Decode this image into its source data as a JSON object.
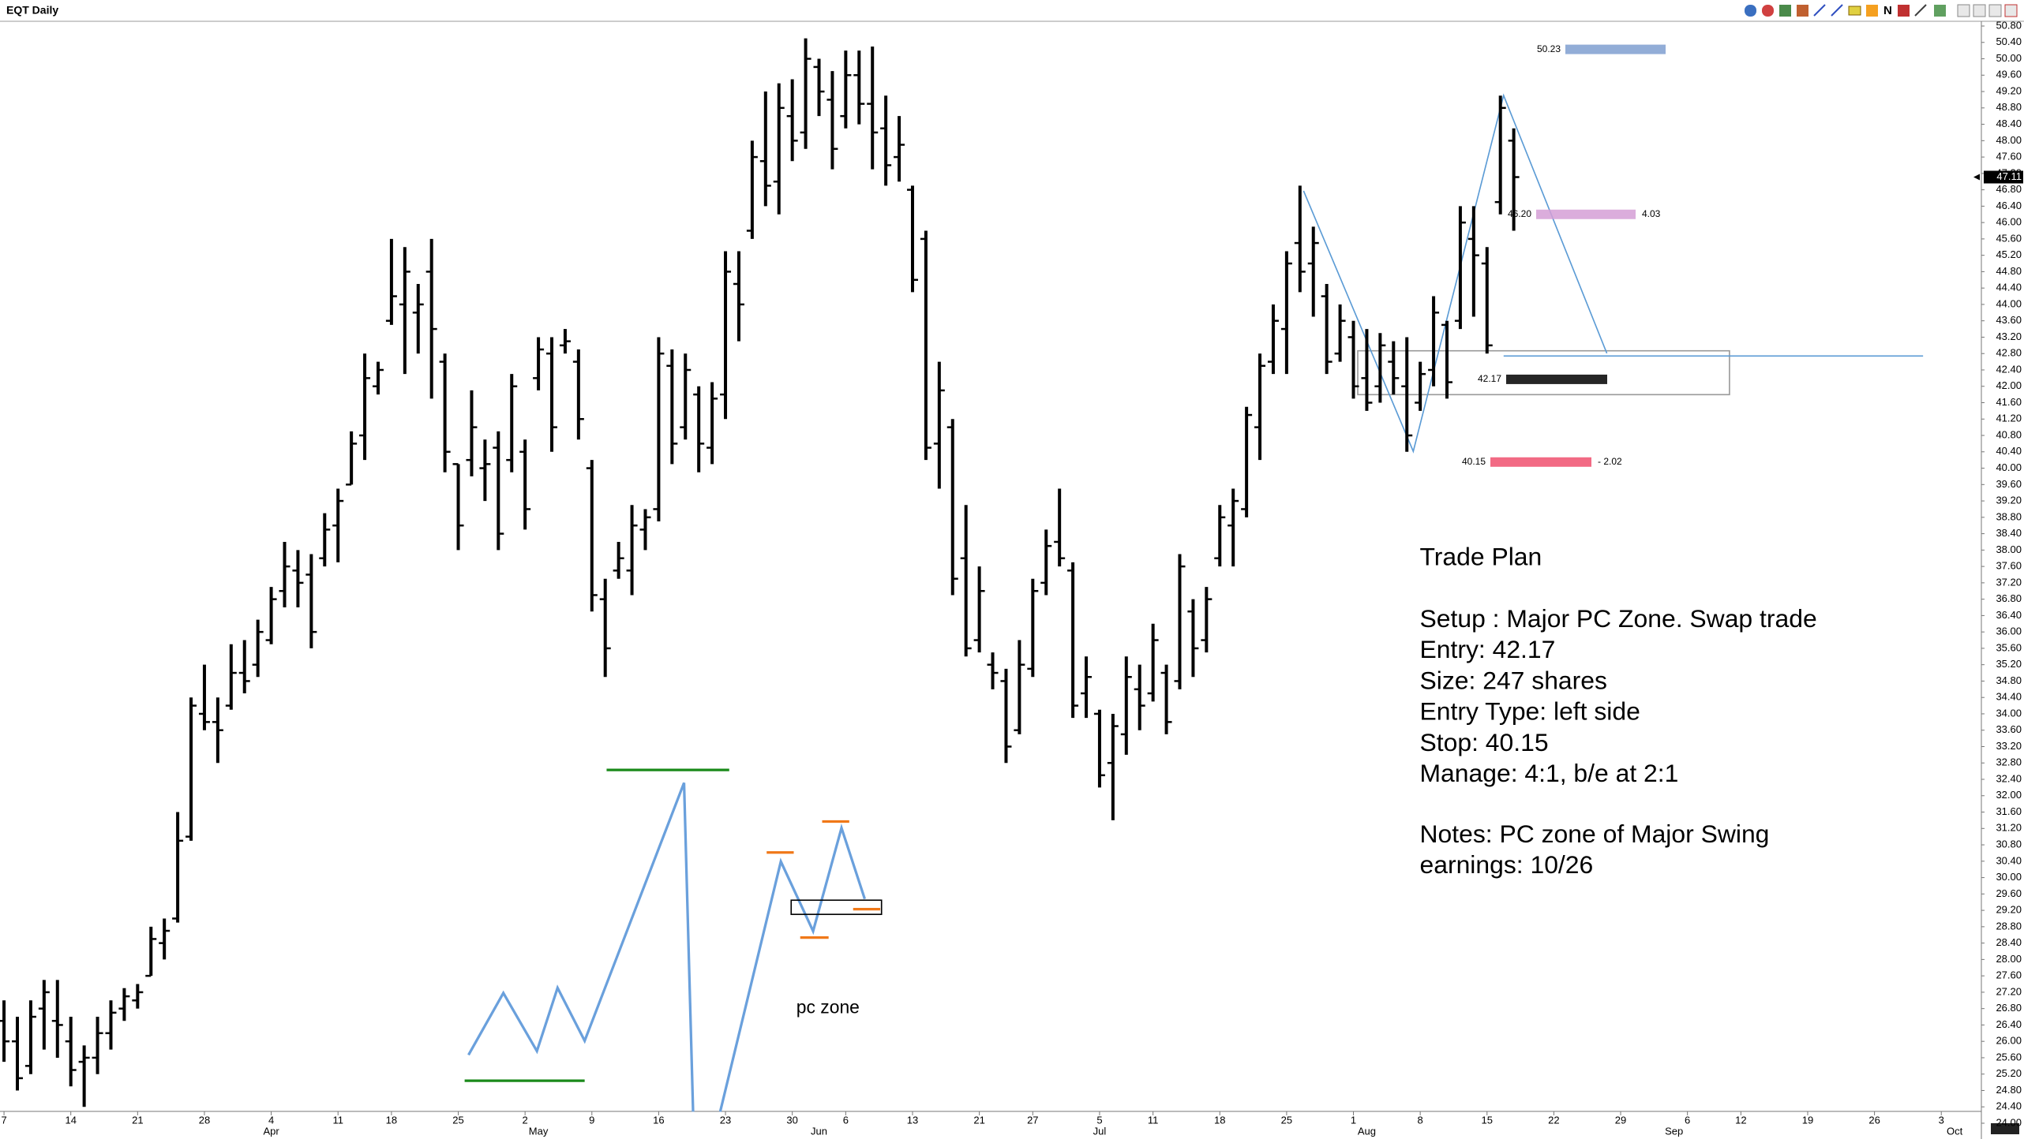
{
  "chart_data": {
    "type": "ohlc",
    "title": "EQT Daily",
    "color": "#000000",
    "open": [
      26.5,
      26.0,
      25.4,
      26.8,
      26.5,
      26.0,
      25.5,
      25.6,
      26.2,
      26.8,
      27.0,
      27.6,
      28.4,
      29.0,
      31.0,
      34.0,
      33.8,
      34.2,
      35.0,
      35.2,
      35.8,
      37.0,
      37.5,
      37.4,
      37.8,
      38.6,
      39.6,
      40.8,
      42.0,
      43.6,
      44.0,
      43.8,
      44.8,
      42.6,
      40.1,
      40.2,
      40.0,
      40.5,
      40.2,
      40.4,
      42.2,
      42.8,
      43.0,
      42.6,
      40.0,
      36.8,
      37.5,
      37.5,
      38.5,
      39.0,
      42.5,
      41.0,
      41.8,
      40.5,
      41.8,
      44.5,
      45.8,
      47.5,
      47.0,
      48.6,
      48.2,
      49.8,
      49.0,
      48.6,
      49.6,
      48.9,
      48.3,
      47.6,
      46.8,
      45.6,
      40.6,
      41.0,
      37.8,
      35.8,
      35.2,
      34.8,
      33.6,
      35.1,
      37.2,
      38.2,
      37.5,
      34.5,
      34.0,
      32.8,
      33.5,
      34.6,
      34.5,
      35.0,
      34.8,
      36.5,
      35.8,
      37.8,
      38.6,
      39.0,
      41.0,
      42.6,
      43.4,
      45.5,
      45.0,
      44.2,
      42.8,
      43.2,
      42.2,
      42.0,
      42.6,
      42.0,
      41.6,
      42.4,
      43.5,
      43.6,
      45.6,
      45.0,
      46.5,
      48.0
    ],
    "high": [
      27.0,
      26.6,
      27.0,
      27.5,
      27.5,
      26.6,
      25.9,
      26.6,
      27.0,
      27.3,
      27.4,
      28.8,
      29.0,
      31.6,
      34.4,
      35.2,
      34.4,
      35.7,
      35.8,
      36.3,
      37.1,
      38.2,
      38.0,
      37.9,
      38.9,
      39.5,
      40.9,
      42.8,
      42.6,
      45.6,
      45.4,
      44.5,
      45.6,
      42.8,
      40.1,
      41.9,
      40.7,
      40.9,
      42.3,
      40.7,
      43.2,
      43.2,
      43.4,
      42.9,
      40.2,
      37.3,
      38.2,
      39.1,
      39.0,
      43.2,
      42.9,
      42.8,
      42.0,
      42.1,
      45.3,
      45.3,
      48.0,
      49.2,
      49.4,
      49.5,
      50.5,
      50.0,
      49.7,
      50.2,
      50.2,
      50.3,
      49.1,
      48.6,
      46.9,
      45.8,
      42.6,
      41.2,
      39.1,
      37.6,
      35.5,
      35.1,
      35.8,
      37.3,
      38.5,
      39.5,
      37.7,
      35.4,
      34.1,
      34.0,
      35.4,
      35.2,
      36.2,
      35.2,
      37.9,
      36.8,
      37.1,
      39.1,
      39.5,
      41.5,
      42.8,
      44.0,
      45.3,
      46.9,
      45.9,
      44.5,
      44.0,
      43.6,
      43.4,
      43.3,
      43.1,
      43.2,
      42.6,
      44.2,
      43.6,
      46.4,
      46.4,
      45.4,
      49.1,
      48.3
    ],
    "low": [
      25.5,
      24.8,
      25.2,
      25.8,
      25.6,
      24.9,
      24.4,
      25.2,
      25.8,
      26.5,
      26.8,
      27.6,
      28.0,
      28.9,
      30.9,
      33.6,
      32.8,
      34.1,
      34.5,
      34.9,
      35.7,
      36.6,
      36.6,
      35.6,
      37.6,
      37.7,
      39.6,
      40.2,
      41.8,
      43.5,
      42.3,
      42.8,
      41.7,
      39.9,
      38.0,
      39.8,
      39.2,
      38.0,
      39.9,
      38.5,
      41.9,
      40.4,
      42.8,
      40.7,
      36.5,
      34.9,
      37.3,
      36.9,
      38.0,
      38.7,
      40.1,
      40.7,
      39.9,
      40.1,
      41.2,
      43.1,
      45.6,
      46.4,
      46.2,
      47.5,
      47.8,
      48.6,
      47.3,
      48.3,
      48.4,
      47.3,
      46.9,
      47.0,
      44.3,
      40.2,
      39.5,
      36.9,
      35.4,
      35.5,
      34.6,
      32.8,
      33.5,
      34.9,
      36.9,
      37.6,
      33.9,
      33.9,
      32.2,
      31.4,
      33.0,
      33.6,
      34.3,
      33.5,
      34.6,
      34.9,
      35.5,
      37.6,
      37.6,
      38.8,
      40.2,
      42.3,
      42.3,
      44.3,
      43.7,
      42.3,
      42.6,
      41.7,
      41.4,
      41.6,
      41.8,
      40.4,
      41.4,
      42.0,
      41.7,
      43.4,
      43.7,
      42.8,
      46.2,
      45.8
    ],
    "close": [
      26.0,
      25.1,
      26.6,
      27.2,
      26.4,
      25.3,
      25.6,
      26.2,
      26.7,
      27.1,
      27.2,
      28.5,
      28.7,
      30.9,
      34.2,
      33.8,
      33.6,
      35.0,
      34.8,
      36.0,
      36.8,
      37.6,
      37.2,
      36.0,
      38.5,
      39.2,
      40.6,
      42.2,
      42.4,
      44.2,
      44.8,
      44.0,
      43.4,
      40.4,
      38.6,
      41.0,
      40.1,
      38.4,
      42.0,
      39.0,
      42.9,
      41.0,
      43.1,
      41.2,
      36.9,
      35.6,
      37.8,
      38.6,
      38.8,
      42.8,
      40.6,
      42.4,
      40.6,
      41.7,
      44.8,
      44.0,
      47.6,
      46.9,
      48.8,
      48.0,
      50.0,
      49.2,
      47.8,
      49.6,
      48.9,
      48.2,
      47.4,
      47.9,
      44.6,
      40.5,
      41.9,
      37.3,
      35.6,
      37.0,
      35.0,
      33.2,
      35.2,
      37.0,
      38.1,
      37.8,
      34.2,
      34.9,
      32.5,
      33.7,
      34.9,
      34.2,
      35.8,
      33.8,
      37.6,
      35.6,
      36.8,
      38.8,
      39.2,
      41.3,
      42.5,
      43.6,
      45.0,
      44.8,
      45.5,
      42.6,
      43.6,
      42.0,
      41.6,
      43.0,
      42.2,
      40.8,
      42.3,
      43.8,
      42.1,
      46.0,
      45.2,
      43.0,
      48.8,
      47.11
    ],
    "xlim": [
      -0.3,
      148
    ],
    "ylim": [
      24.0,
      50.8
    ],
    "xticks": [
      {
        "value": 0,
        "label": "7"
      },
      {
        "value": 5,
        "label": "14"
      },
      {
        "value": 10,
        "label": "21"
      },
      {
        "value": 15,
        "label": "28"
      },
      {
        "value": 20,
        "label": "4"
      },
      {
        "value": 25,
        "label": "11"
      },
      {
        "value": 29,
        "label": "18"
      },
      {
        "value": 34,
        "label": "25"
      },
      {
        "value": 39,
        "label": "2"
      },
      {
        "value": 44,
        "label": "9"
      },
      {
        "value": 49,
        "label": "16"
      },
      {
        "value": 54,
        "label": "23"
      },
      {
        "value": 59,
        "label": "30"
      },
      {
        "value": 63,
        "label": "6"
      },
      {
        "value": 68,
        "label": "13"
      },
      {
        "value": 73,
        "label": "21"
      },
      {
        "value": 77,
        "label": "27"
      },
      {
        "value": 82,
        "label": "5"
      },
      {
        "value": 86,
        "label": "11"
      },
      {
        "value": 91,
        "label": "18"
      },
      {
        "value": 96,
        "label": "25"
      },
      {
        "value": 101,
        "label": "1"
      },
      {
        "value": 106,
        "label": "8"
      },
      {
        "value": 111,
        "label": "15"
      },
      {
        "value": 116,
        "label": "22"
      },
      {
        "value": 121,
        "label": "29"
      },
      {
        "value": 126,
        "label": "6"
      },
      {
        "value": 130,
        "label": "12"
      },
      {
        "value": 135,
        "label": "19"
      },
      {
        "value": 140,
        "label": "26"
      },
      {
        "value": 145,
        "label": "3"
      }
    ],
    "month_ticks": [
      {
        "value": 20,
        "label": "Apr"
      },
      {
        "value": 40,
        "label": "May"
      },
      {
        "value": 61,
        "label": "Jun"
      },
      {
        "value": 82,
        "label": "Jul"
      },
      {
        "value": 102,
        "label": "Aug"
      },
      {
        "value": 125,
        "label": "Sep"
      },
      {
        "value": 146,
        "label": "Oct"
      }
    ],
    "yticks": [
      {
        "value": 24.0,
        "label": "24.00"
      },
      {
        "value": 24.4,
        "label": "24.40"
      },
      {
        "value": 24.8,
        "label": "24.80"
      },
      {
        "value": 25.2,
        "label": "25.20"
      },
      {
        "value": 25.6,
        "label": "25.60"
      },
      {
        "value": 26.0,
        "label": "26.00"
      },
      {
        "value": 26.4,
        "label": "26.40"
      },
      {
        "value": 26.8,
        "label": "26.80"
      },
      {
        "value": 27.2,
        "label": "27.20"
      },
      {
        "value": 27.6,
        "label": "27.60"
      },
      {
        "value": 28.0,
        "label": "28.00"
      },
      {
        "value": 28.4,
        "label": "28.40"
      },
      {
        "value": 28.8,
        "label": "28.80"
      },
      {
        "value": 29.2,
        "label": "29.20"
      },
      {
        "value": 29.6,
        "label": "29.60"
      },
      {
        "value": 30.0,
        "label": "30.00"
      },
      {
        "value": 30.4,
        "label": "30.40"
      },
      {
        "value": 30.8,
        "label": "30.80"
      },
      {
        "value": 31.2,
        "label": "31.20"
      },
      {
        "value": 31.6,
        "label": "31.60"
      },
      {
        "value": 32.0,
        "label": "32.00"
      },
      {
        "value": 32.4,
        "label": "32.40"
      },
      {
        "value": 32.8,
        "label": "32.80"
      },
      {
        "value": 33.2,
        "label": "33.20"
      },
      {
        "value": 33.6,
        "label": "33.60"
      },
      {
        "value": 34.0,
        "label": "34.00"
      },
      {
        "value": 34.4,
        "label": "34.40"
      },
      {
        "value": 34.8,
        "label": "34.80"
      },
      {
        "value": 35.2,
        "label": "35.20"
      },
      {
        "value": 35.6,
        "label": "35.60"
      },
      {
        "value": 36.0,
        "label": "36.00"
      },
      {
        "value": 36.4,
        "label": "36.40"
      },
      {
        "value": 36.8,
        "label": "36.80"
      },
      {
        "value": 37.2,
        "label": "37.20"
      },
      {
        "value": 37.6,
        "label": "37.60"
      },
      {
        "value": 38.0,
        "label": "38.00"
      },
      {
        "value": 38.4,
        "label": "38.40"
      },
      {
        "value": 38.8,
        "label": "38.80"
      },
      {
        "value": 39.2,
        "label": "39.20"
      },
      {
        "value": 39.6,
        "label": "39.60"
      },
      {
        "value": 40.0,
        "label": "40.00"
      },
      {
        "value": 40.4,
        "label": "40.40"
      },
      {
        "value": 40.8,
        "label": "40.80"
      },
      {
        "value": 41.2,
        "label": "41.20"
      },
      {
        "value": 41.6,
        "label": "41.60"
      },
      {
        "value": 42.0,
        "label": "42.00"
      },
      {
        "value": 42.4,
        "label": "42.40"
      },
      {
        "value": 42.8,
        "label": "42.80"
      },
      {
        "value": 43.2,
        "label": "43.20"
      },
      {
        "value": 43.6,
        "label": "43.60"
      },
      {
        "value": 44.0,
        "label": "44.00"
      },
      {
        "value": 44.4,
        "label": "44.40"
      },
      {
        "value": 44.8,
        "label": "44.80"
      },
      {
        "value": 45.2,
        "label": "45.20"
      },
      {
        "value": 45.6,
        "label": "45.60"
      },
      {
        "value": 46.0,
        "label": "46.00"
      },
      {
        "value": 46.4,
        "label": "46.40"
      },
      {
        "value": 46.8,
        "label": "46.80"
      },
      {
        "value": 47.2,
        "label": "47.20"
      },
      {
        "value": 47.6,
        "label": "47.60"
      },
      {
        "value": 48.0,
        "label": "48.00"
      },
      {
        "value": 48.4,
        "label": "48.40"
      },
      {
        "value": 48.8,
        "label": "48.80"
      },
      {
        "value": 49.2,
        "label": "49.20"
      },
      {
        "value": 49.6,
        "label": "49.60"
      },
      {
        "value": 50.0,
        "label": "50.00"
      },
      {
        "value": 50.4,
        "label": "50.40"
      },
      {
        "value": 50.8,
        "label": "50.80"
      }
    ],
    "last_price": {
      "value": 47.11,
      "label": "47.11"
    },
    "levels": [
      {
        "value": 50.23,
        "label": "50.23",
        "color": "#7f9fd0"
      },
      {
        "value": 46.2,
        "label": "46.20",
        "color": "#d59fd6",
        "side_label": "4.03"
      },
      {
        "value": 42.17,
        "label": "42.17",
        "color": "#000000"
      },
      {
        "value": 40.15,
        "label": "40.15",
        "color": "#f0506e",
        "side_label": "- 2.02"
      }
    ],
    "annotations": {
      "trade_plan_title": "Trade Plan",
      "trade_plan_lines": [
        "Setup : Major PC Zone.  Swap trade",
        "Entry: 42.17",
        "Size: 247 shares",
        "Entry Type: left side",
        "Stop: 40.15",
        "Manage: 4:1, b/e at 2:1"
      ],
      "notes_lines": [
        "Notes: PC zone of Major Swing",
        "earnings: 10/26"
      ],
      "pc_zone": "pc zone"
    }
  },
  "toolbar": {
    "label": "N"
  }
}
